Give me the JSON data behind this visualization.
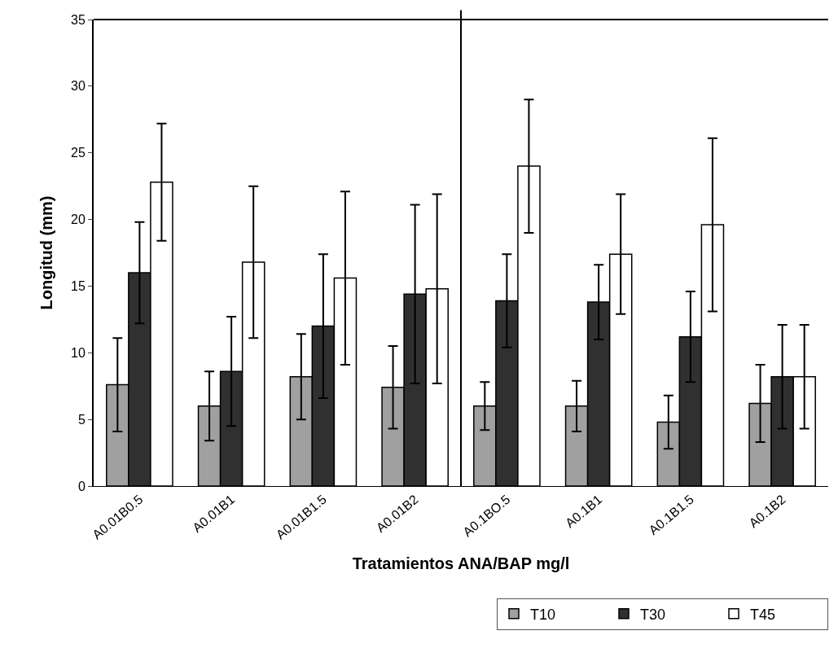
{
  "chart_data": {
    "type": "bar",
    "xlabel": "Tratamientos ANA/BAP mg/l",
    "ylabel": "Longitud (mm)",
    "categories": [
      "A0.01B0.5",
      "A0.01B1",
      "A0.01B1.5",
      "A0.01B2",
      "A0.1BO.5",
      "A0.1B1",
      "A0.1B1.5",
      "A0.1B2"
    ],
    "series": [
      {
        "name": "T10",
        "color": "#a0a0a0",
        "values": [
          7.6,
          6.0,
          8.2,
          7.4,
          6.0,
          6.0,
          4.8,
          6.2
        ],
        "errors": [
          3.5,
          2.6,
          3.2,
          3.1,
          1.8,
          1.9,
          2.0,
          2.9
        ]
      },
      {
        "name": "T30",
        "color": "#303030",
        "values": [
          16.0,
          8.6,
          12.0,
          14.4,
          13.9,
          13.8,
          11.2,
          8.2
        ],
        "errors": [
          3.8,
          4.1,
          5.4,
          6.7,
          3.5,
          2.8,
          3.4,
          3.9
        ]
      },
      {
        "name": "T45",
        "color": "#ffffff",
        "values": [
          22.8,
          16.8,
          15.6,
          14.8,
          24.0,
          17.4,
          19.6,
          8.2
        ],
        "errors": [
          4.4,
          5.7,
          6.5,
          7.1,
          5.0,
          4.5,
          6.5,
          3.9
        ]
      }
    ],
    "ylim": [
      0,
      35
    ],
    "yticks": [
      0,
      5,
      10,
      15,
      20,
      25,
      30,
      35
    ],
    "grid": false,
    "legend": "bottom right"
  }
}
